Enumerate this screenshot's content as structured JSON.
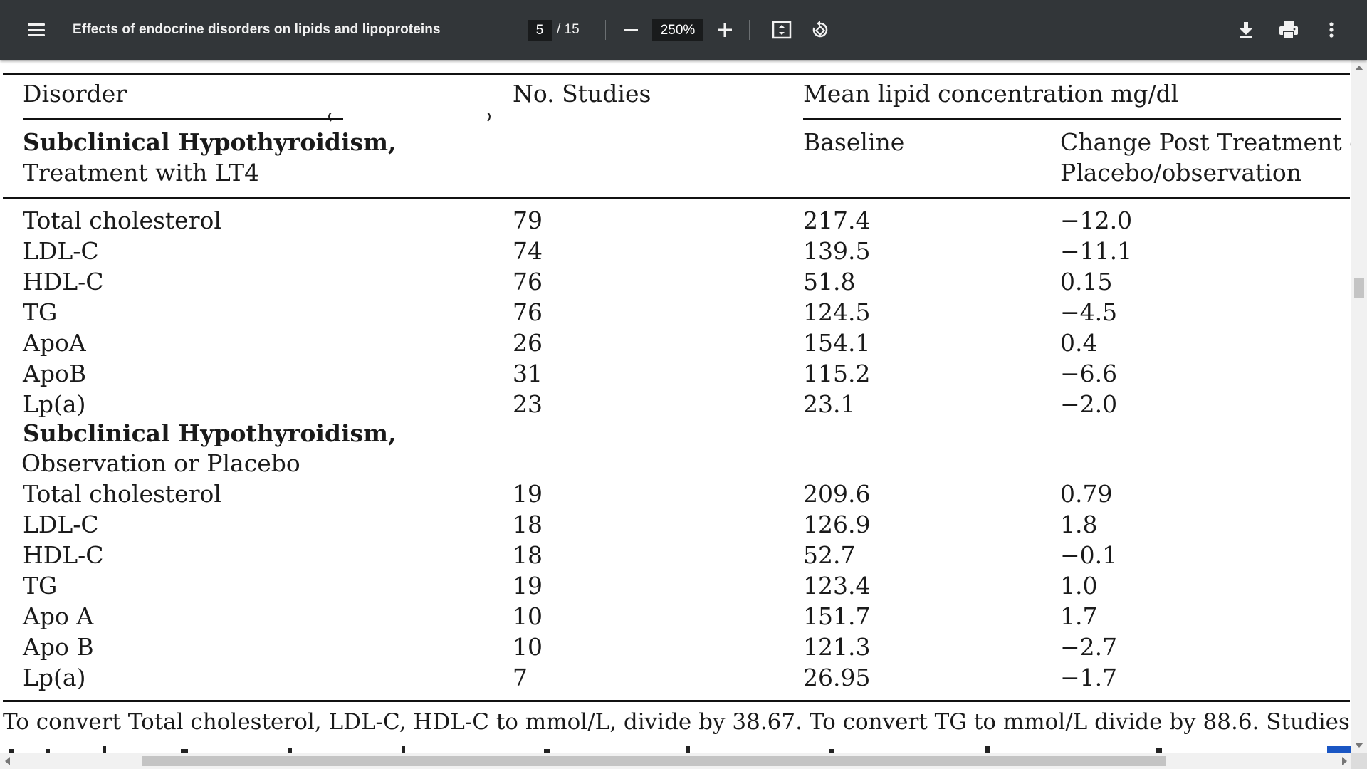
{
  "toolbar": {
    "title": "Effects of endocrine disorders on lipids and lipoproteins",
    "current_page": "5",
    "total_pages": "/ 15",
    "zoom": "250%",
    "icons": {
      "menu": "menu-icon",
      "zoom_out": "minus-icon",
      "zoom_in": "plus-icon",
      "fit": "fit-to-page-icon",
      "rotate": "rotate-icon",
      "download": "download-icon",
      "print": "print-icon",
      "more": "more-vert-icon"
    },
    "colors": {
      "background": "#323639",
      "field": "#191b1c",
      "text": "#f1f1f1"
    }
  },
  "table": {
    "header": {
      "disorder": "Disorder",
      "studies": "No. Studies",
      "mean": "Mean lipid concentration mg/dl",
      "baseline": "Baseline",
      "change_line1": "Change Post Treatment or",
      "change_line2": "Placebo/observation"
    },
    "section1": {
      "title_bold": "Subclinical Hypothyroidism,",
      "title_rest": "Treatment with LT4",
      "rows": [
        {
          "name": "Total cholesterol",
          "studies": "79",
          "baseline": "217.4",
          "change": "−12.0"
        },
        {
          "name": "LDL-C",
          "studies": "74",
          "baseline": "139.5",
          "change": "−11.1"
        },
        {
          "name": "HDL-C",
          "studies": "76",
          "baseline": "51.8",
          "change": "0.15"
        },
        {
          "name": "TG",
          "studies": "76",
          "baseline": "124.5",
          "change": "−4.5"
        },
        {
          "name": "ApoA",
          "studies": "26",
          "baseline": "154.1",
          "change": "0.4"
        },
        {
          "name": "ApoB",
          "studies": "31",
          "baseline": "115.2",
          "change": "−6.6"
        },
        {
          "name": "Lp(a)",
          "studies": "23",
          "baseline": "23.1",
          "change": "−2.0"
        }
      ]
    },
    "section2": {
      "title_bold": "Subclinical Hypothyroidism,",
      "title_rest": "Observation or Placebo",
      "rows": [
        {
          "name": "Total cholesterol",
          "studies": "19",
          "baseline": "209.6",
          "change": "0.79"
        },
        {
          "name": "LDL-C",
          "studies": "18",
          "baseline": "126.9",
          "change": "1.8"
        },
        {
          "name": "HDL-C",
          "studies": "18",
          "baseline": "52.7",
          "change": "−0.1"
        },
        {
          "name": "TG",
          "studies": "19",
          "baseline": "123.4",
          "change": "1.0"
        },
        {
          "name": "Apo A",
          "studies": "10",
          "baseline": "151.7",
          "change": "1.7"
        },
        {
          "name": "Apo B",
          "studies": "10",
          "baseline": "121.3",
          "change": "−2.7"
        },
        {
          "name": "Lp(a)",
          "studies": "7",
          "baseline": "26.95",
          "change": "−1.7"
        }
      ]
    }
  },
  "footnote": "To convert Total cholesterol, LDL-C, HDL-C to mmol/L, divide by 38.67. To convert TG to mmol/L divide by 88.6. Studies containe"
}
